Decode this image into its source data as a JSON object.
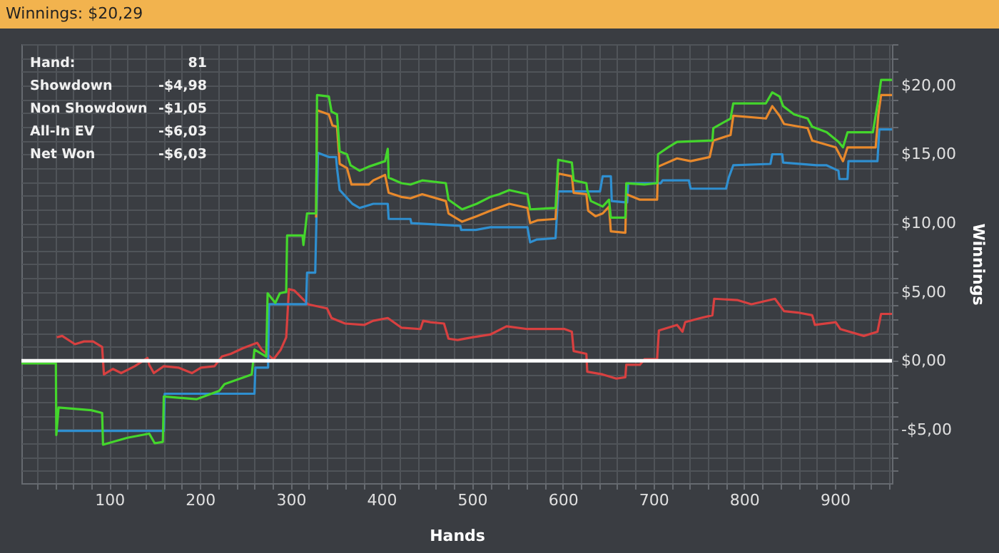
{
  "chart_data": {
    "type": "line",
    "title": "Winnings: $20,29",
    "xlabel": "Hands",
    "ylabel": "Winnings",
    "annotations": [
      "Hand:",
      "81",
      "Showdown",
      "-$4,98",
      "Non Showdown",
      "-$1,05",
      "All-In EV",
      "-$6,03",
      "Net Won",
      "-$6,03"
    ],
    "xlim": [
      3,
      963
    ],
    "ylim": [
      -8.9,
      23
    ],
    "xticks": [
      {
        "value": 20,
        "label": null
      },
      {
        "value": 40,
        "label": null
      },
      {
        "value": 60,
        "label": null
      },
      {
        "value": 80,
        "label": null
      },
      {
        "value": 100,
        "label": "100"
      },
      {
        "value": 120,
        "label": null
      },
      {
        "value": 140,
        "label": null
      },
      {
        "value": 160,
        "label": null
      },
      {
        "value": 180,
        "label": null
      },
      {
        "value": 200,
        "label": "200"
      },
      {
        "value": 220,
        "label": null
      },
      {
        "value": 240,
        "label": null
      },
      {
        "value": 260,
        "label": null
      },
      {
        "value": 280,
        "label": null
      },
      {
        "value": 300,
        "label": "300"
      },
      {
        "value": 320,
        "label": null
      },
      {
        "value": 340,
        "label": null
      },
      {
        "value": 360,
        "label": null
      },
      {
        "value": 380,
        "label": null
      },
      {
        "value": 400,
        "label": "400"
      },
      {
        "value": 420,
        "label": null
      },
      {
        "value": 440,
        "label": null
      },
      {
        "value": 460,
        "label": null
      },
      {
        "value": 480,
        "label": null
      },
      {
        "value": 500,
        "label": "500"
      },
      {
        "value": 520,
        "label": null
      },
      {
        "value": 540,
        "label": null
      },
      {
        "value": 560,
        "label": null
      },
      {
        "value": 580,
        "label": null
      },
      {
        "value": 600,
        "label": "600"
      },
      {
        "value": 620,
        "label": null
      },
      {
        "value": 640,
        "label": null
      },
      {
        "value": 660,
        "label": null
      },
      {
        "value": 680,
        "label": null
      },
      {
        "value": 700,
        "label": "700"
      },
      {
        "value": 720,
        "label": null
      },
      {
        "value": 740,
        "label": null
      },
      {
        "value": 760,
        "label": null
      },
      {
        "value": 780,
        "label": null
      },
      {
        "value": 800,
        "label": "800"
      },
      {
        "value": 820,
        "label": null
      },
      {
        "value": 840,
        "label": null
      },
      {
        "value": 860,
        "label": null
      },
      {
        "value": 880,
        "label": null
      },
      {
        "value": 900,
        "label": "900"
      },
      {
        "value": 920,
        "label": null
      },
      {
        "value": 940,
        "label": null
      },
      {
        "value": 960,
        "label": null
      }
    ],
    "yticks": [
      {
        "value": -8,
        "label": null
      },
      {
        "value": -7,
        "label": null
      },
      {
        "value": -6,
        "label": null
      },
      {
        "value": -5,
        "label": "-$5,00"
      },
      {
        "value": -4,
        "label": null
      },
      {
        "value": -3,
        "label": null
      },
      {
        "value": -2,
        "label": null
      },
      {
        "value": -1,
        "label": null
      },
      {
        "value": 0,
        "label": "$0,00"
      },
      {
        "value": 1,
        "label": null
      },
      {
        "value": 2,
        "label": null
      },
      {
        "value": 3,
        "label": null
      },
      {
        "value": 4,
        "label": null
      },
      {
        "value": 5,
        "label": "$5,00"
      },
      {
        "value": 6,
        "label": null
      },
      {
        "value": 7,
        "label": null
      },
      {
        "value": 8,
        "label": null
      },
      {
        "value": 9,
        "label": null
      },
      {
        "value": 10,
        "label": "$10,00"
      },
      {
        "value": 11,
        "label": null
      },
      {
        "value": 12,
        "label": null
      },
      {
        "value": 13,
        "label": null
      },
      {
        "value": 14,
        "label": null
      },
      {
        "value": 15,
        "label": "$15,00"
      },
      {
        "value": 16,
        "label": null
      },
      {
        "value": 17,
        "label": null
      },
      {
        "value": 18,
        "label": null
      },
      {
        "value": 19,
        "label": null
      },
      {
        "value": 20,
        "label": "$20,00"
      },
      {
        "value": 21,
        "label": null
      },
      {
        "value": 22,
        "label": null
      },
      {
        "value": 23,
        "label": null
      }
    ],
    "grid": true,
    "ref_lines": [
      {
        "axis": "y",
        "value": 0,
        "color": "#ffffff"
      }
    ],
    "series": [
      {
        "color": "#d84040",
        "x": [
          42,
          48,
          62,
          72,
          82,
          92,
          94,
          104,
          113,
          128,
          142,
          144,
          149,
          160,
          176,
          191,
          201,
          216,
          224,
          234,
          247,
          263,
          268,
          281,
          289,
          295,
          298,
          304,
          319,
          340,
          345,
          360,
          381,
          391,
          407,
          422,
          443,
          446,
          454,
          469,
          474,
          484,
          500,
          520,
          538,
          561,
          581,
          602,
          610,
          612,
          626,
          627,
          644,
          659,
          669,
          670,
          685,
          690,
          704,
          706,
          726,
          732,
          735,
          752,
          765,
          767,
          793,
          808,
          834,
          844,
          859,
          875,
          878,
          901,
          906,
          932,
          947,
          951,
          963
        ],
        "values": [
          1.7,
          1.8,
          1.2,
          1.4,
          1.4,
          1.0,
          -1.0,
          -0.6,
          -0.9,
          -0.4,
          0.2,
          -0.3,
          -0.9,
          -0.4,
          -0.5,
          -0.9,
          -0.5,
          -0.4,
          0.3,
          0.5,
          0.9,
          1.3,
          0.8,
          0.1,
          0.8,
          1.7,
          5.2,
          5.1,
          4.1,
          3.8,
          3.1,
          2.7,
          2.6,
          2.9,
          3.1,
          2.4,
          2.3,
          2.9,
          2.8,
          2.7,
          1.6,
          1.5,
          1.7,
          1.9,
          2.5,
          2.3,
          2.3,
          2.3,
          2.1,
          0.7,
          0.5,
          -0.8,
          -1.0,
          -1.3,
          -1.2,
          -0.3,
          -0.3,
          0.1,
          0.1,
          2.2,
          2.6,
          2.1,
          2.8,
          3.1,
          3.3,
          4.5,
          4.4,
          4.1,
          4.5,
          3.6,
          3.5,
          3.3,
          2.6,
          2.8,
          2.3,
          1.8,
          2.1,
          3.4,
          3.4
        ]
      },
      {
        "color": "#2f8fd0",
        "x": [
          41.5,
          160,
          161,
          260,
          261,
          275,
          276,
          317,
          318,
          327,
          330,
          342,
          350,
          351,
          354,
          368,
          376,
          391,
          407,
          408,
          432,
          433,
          487,
          488,
          504,
          520,
          561,
          564,
          571,
          592,
          595,
          641,
          644,
          653,
          654,
          671,
          672,
          708,
          710,
          739,
          741,
          780,
          783,
          788,
          829,
          831,
          842,
          843,
          880,
          891,
          904,
          905,
          914,
          915,
          947,
          949,
          963
        ],
        "values": [
          -5.1,
          -5.1,
          -2.4,
          -2.4,
          -0.5,
          -0.5,
          4.1,
          4.1,
          6.4,
          6.4,
          15.1,
          14.8,
          14.8,
          14.0,
          12.4,
          11.4,
          11.1,
          11.4,
          11.4,
          10.3,
          10.3,
          10.0,
          9.8,
          9.5,
          9.5,
          9.7,
          9.7,
          8.6,
          8.8,
          8.9,
          12.3,
          12.3,
          13.4,
          13.4,
          11.6,
          11.5,
          12.9,
          12.9,
          13.1,
          13.1,
          12.5,
          12.5,
          13.3,
          14.2,
          14.3,
          15.0,
          15.0,
          14.4,
          14.2,
          14.2,
          13.8,
          13.2,
          13.2,
          14.5,
          14.5,
          16.8,
          16.8
        ]
      },
      {
        "color": "#e8892c",
        "x": [
          328,
          329,
          342,
          346,
          351,
          354,
          362,
          367,
          386,
          391,
          404,
          408,
          422,
          432,
          445,
          471,
          474,
          489,
          505,
          520,
          541,
          561,
          564,
          572,
          592,
          595,
          610,
          612,
          626,
          628,
          636,
          644,
          651,
          653,
          669,
          670,
          685,
          704,
          705,
          726,
          741,
          762,
          766,
          785,
          788,
          824,
          831,
          839,
          844,
          870,
          875,
          901,
          909,
          914,
          945,
          948,
          951,
          963
        ],
        "values": [
          10.4,
          18.2,
          17.9,
          17.1,
          17.0,
          14.3,
          14.0,
          12.8,
          12.8,
          13.1,
          13.5,
          12.2,
          11.9,
          11.8,
          12.1,
          11.6,
          10.7,
          10.1,
          10.5,
          10.9,
          11.4,
          11.1,
          10.0,
          10.2,
          10.3,
          13.6,
          13.4,
          12.2,
          12.1,
          10.9,
          10.5,
          10.7,
          11.2,
          9.4,
          9.3,
          12.1,
          11.7,
          11.7,
          14.1,
          14.7,
          14.5,
          14.8,
          16.0,
          16.4,
          17.8,
          17.6,
          18.5,
          17.8,
          17.2,
          16.9,
          16.0,
          15.5,
          14.5,
          15.5,
          15.5,
          17.9,
          19.3,
          19.3
        ]
      },
      {
        "color": "#44d62c",
        "x": [
          3,
          41,
          41.5,
          44,
          80,
          92,
          93,
          120,
          144,
          150,
          159,
          160,
          196,
          221,
          227,
          257,
          260,
          273,
          274.5,
          283,
          288,
          295,
          296,
          313,
          314,
          318,
          328,
          329,
          342,
          345,
          351,
          354,
          362,
          366,
          376,
          386,
          404,
          407,
          408,
          422,
          432,
          445,
          471,
          474,
          489,
          505,
          520,
          530,
          541,
          561,
          564,
          592,
          595,
          610,
          612,
          626,
          627,
          631,
          644,
          651,
          653,
          669,
          670,
          690,
          704,
          705,
          716,
          726,
          765,
          766,
          785,
          788,
          824,
          831,
          839,
          843,
          855,
          870,
          875,
          891,
          904,
          909,
          914,
          942,
          948,
          951,
          963
        ],
        "values": [
          -0.2,
          -0.2,
          -5.4,
          -3.4,
          -3.6,
          -3.8,
          -6.1,
          -5.6,
          -5.3,
          -6.0,
          -5.9,
          -2.6,
          -2.8,
          -2.2,
          -1.7,
          -1.0,
          0.8,
          0.3,
          4.9,
          4.2,
          4.9,
          5.0,
          9.1,
          9.1,
          8.4,
          10.7,
          10.7,
          19.3,
          19.2,
          18.1,
          17.9,
          15.2,
          15.0,
          14.2,
          13.8,
          14.1,
          14.5,
          15.4,
          13.3,
          12.9,
          12.8,
          13.1,
          12.9,
          11.7,
          11.0,
          11.4,
          11.9,
          12.1,
          12.4,
          12.1,
          11.0,
          11.1,
          14.6,
          14.4,
          13.1,
          12.9,
          12.4,
          11.6,
          11.2,
          11.7,
          10.4,
          10.4,
          12.9,
          12.8,
          12.9,
          15.0,
          15.5,
          15.9,
          16.0,
          16.9,
          17.6,
          18.7,
          18.7,
          19.5,
          19.2,
          18.5,
          17.9,
          17.6,
          17.0,
          16.6,
          15.9,
          15.5,
          16.6,
          16.6,
          19.0,
          20.4,
          20.4
        ]
      }
    ]
  }
}
